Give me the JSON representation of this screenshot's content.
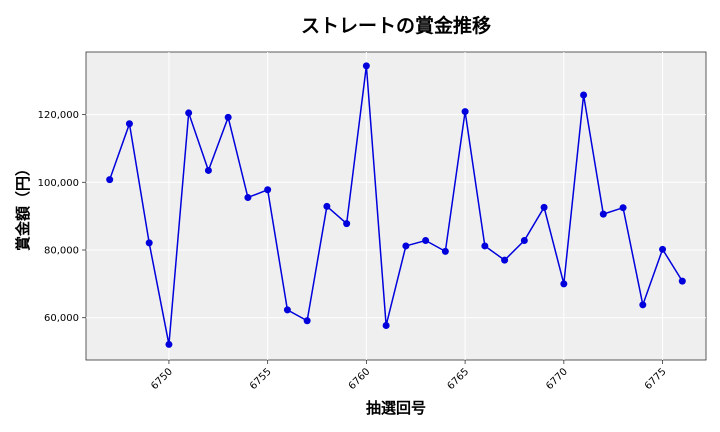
{
  "chart_data": {
    "type": "line",
    "title": "ストレートの賞金推移",
    "xlabel": "抽選回号",
    "ylabel": "賞金額（円）",
    "xlim": [
      6745.8,
      6777.2
    ],
    "ylim": [
      47500,
      138500
    ],
    "xticks": [
      6750,
      6755,
      6760,
      6765,
      6770,
      6775
    ],
    "xtick_labels": [
      "6750",
      "6755",
      "6760",
      "6765",
      "6770",
      "6775"
    ],
    "yticks": [
      60000,
      80000,
      100000,
      120000
    ],
    "ytick_labels": [
      "60,000",
      "80,000",
      "100,000",
      "120,000"
    ],
    "grid": true,
    "series": [
      {
        "name": "",
        "color": "#0000dd",
        "x": [
          6747,
          6748,
          6749,
          6750,
          6751,
          6752,
          6753,
          6754,
          6755,
          6756,
          6757,
          6758,
          6759,
          6760,
          6761,
          6762,
          6763,
          6764,
          6765,
          6766,
          6767,
          6768,
          6769,
          6770,
          6771,
          6772,
          6773,
          6774,
          6775,
          6776
        ],
        "values": [
          100800,
          117300,
          82100,
          52100,
          120500,
          103500,
          119200,
          95500,
          97800,
          62300,
          59100,
          92900,
          87800,
          134400,
          57700,
          81200,
          82800,
          79600,
          120900,
          81200,
          77000,
          82800,
          92600,
          70000,
          125800,
          90600,
          92500,
          63800,
          80200,
          70800
        ]
      }
    ]
  }
}
